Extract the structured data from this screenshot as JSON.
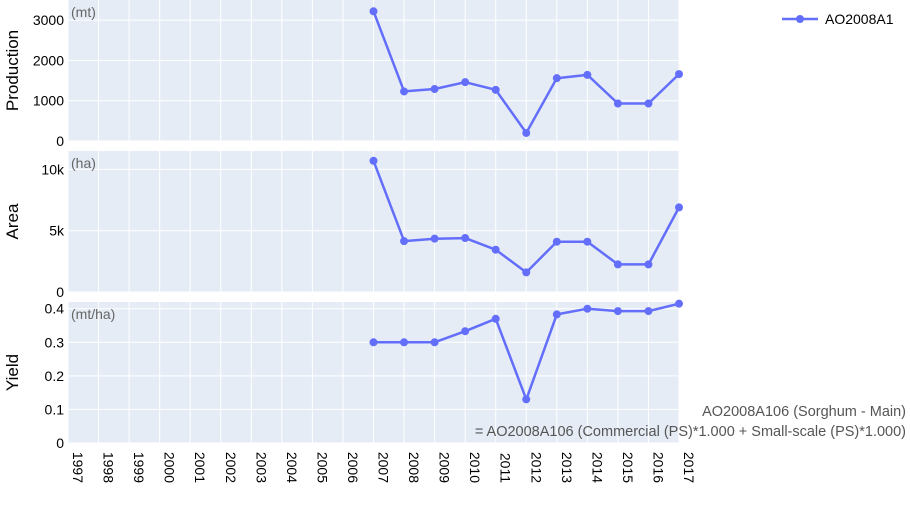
{
  "chart_data": {
    "type": "line",
    "x": [
      "1997",
      "1998",
      "1999",
      "2000",
      "2001",
      "2002",
      "2003",
      "2004",
      "2005",
      "2006",
      "2007",
      "2008",
      "2009",
      "2010",
      "2011",
      "2012",
      "2013",
      "2014",
      "2015",
      "2016",
      "2017"
    ],
    "legend": {
      "label": "AO2008A1",
      "placement": "top-right"
    },
    "line_color": "#636efa",
    "panel_color": "#e5ecf6",
    "grid": true,
    "panels": [
      {
        "ylabel": "Production",
        "unit": "(mt)",
        "ylim": [
          0,
          3500
        ],
        "yticks": [
          0,
          1000,
          2000,
          3000
        ],
        "ytick_labels": [
          "0",
          "1000",
          "2000",
          "3000"
        ],
        "series": [
          {
            "x": [
              "2007",
              "2008",
              "2009",
              "2010",
              "2011",
              "2012",
              "2013",
              "2014",
              "2015",
              "2016",
              "2017"
            ],
            "values": [
              3220,
              1230,
              1290,
              1460,
              1270,
              200,
              1560,
              1640,
              930,
              930,
              1660
            ]
          }
        ]
      },
      {
        "ylabel": "Area",
        "unit": "(ha)",
        "ylim": [
          0,
          11500
        ],
        "yticks": [
          0,
          5000,
          10000
        ],
        "ytick_labels": [
          "0",
          "5k",
          "10k"
        ],
        "series": [
          {
            "x": [
              "2007",
              "2008",
              "2009",
              "2010",
              "2011",
              "2012",
              "2013",
              "2014",
              "2015",
              "2016",
              "2017"
            ],
            "values": [
              10700,
              4150,
              4350,
              4400,
              3450,
              1600,
              4100,
              4100,
              2250,
              2250,
              6900
            ]
          }
        ]
      },
      {
        "ylabel": "Yield",
        "unit": "(mt/ha)",
        "ylim": [
          0,
          0.42
        ],
        "yticks": [
          0,
          0.1,
          0.2,
          0.3,
          0.4
        ],
        "ytick_labels": [
          "0",
          "0.1",
          "0.2",
          "0.3",
          "0.4"
        ],
        "series": [
          {
            "x": [
              "2007",
              "2008",
              "2009",
              "2010",
              "2011",
              "2012",
              "2013",
              "2014",
              "2015",
              "2016",
              "2017"
            ],
            "values": [
              0.3,
              0.3,
              0.3,
              0.333,
              0.37,
              0.13,
              0.383,
              0.4,
              0.393,
              0.393,
              0.415
            ]
          }
        ]
      }
    ],
    "annotation": {
      "line1": "AO2008A106 (Sorghum - Main)",
      "line2": "= AO2008A106 (Commercial (PS)*1.000 + Small-scale (PS)*1.000)"
    }
  }
}
